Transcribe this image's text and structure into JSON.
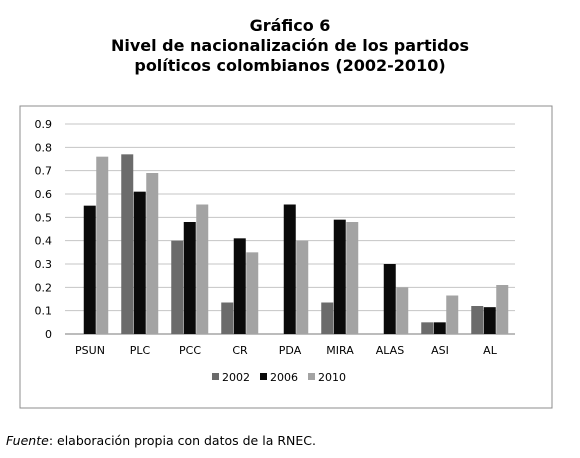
{
  "chart_data": {
    "type": "bar",
    "label": "Gráfico 6",
    "title_line1": "Nivel de nacionalización de los partidos",
    "title_line2": "políticos colombianos (2002-2010)",
    "categories": [
      "PSUN",
      "PLC",
      "PCC",
      "CR",
      "PDA",
      "MIRA",
      "ALAS",
      "ASI",
      "AL"
    ],
    "series": [
      {
        "name": "2002",
        "color": "#6b6b6b",
        "values": [
          null,
          0.77,
          0.4,
          0.135,
          null,
          0.135,
          null,
          0.05,
          0.12
        ]
      },
      {
        "name": "2006",
        "color": "#0a0a0a",
        "values": [
          0.55,
          0.61,
          0.48,
          0.41,
          0.555,
          0.49,
          0.3,
          0.05,
          0.115
        ]
      },
      {
        "name": "2010",
        "color": "#a3a3a3",
        "values": [
          0.76,
          0.69,
          0.555,
          0.35,
          0.4,
          0.48,
          0.2,
          0.165,
          0.21
        ]
      }
    ],
    "ylim": [
      0,
      0.9
    ],
    "yticks": [
      "0",
      "0.1",
      "0.2",
      "0.3",
      "0.4",
      "0.5",
      "0.6",
      "0.7",
      "0.8",
      "0.9"
    ],
    "grid": true,
    "legend_position": "bottom-center"
  },
  "footnote": {
    "source_label": "Fuente",
    "text": ": elaboración propia con datos de la RNEC."
  }
}
